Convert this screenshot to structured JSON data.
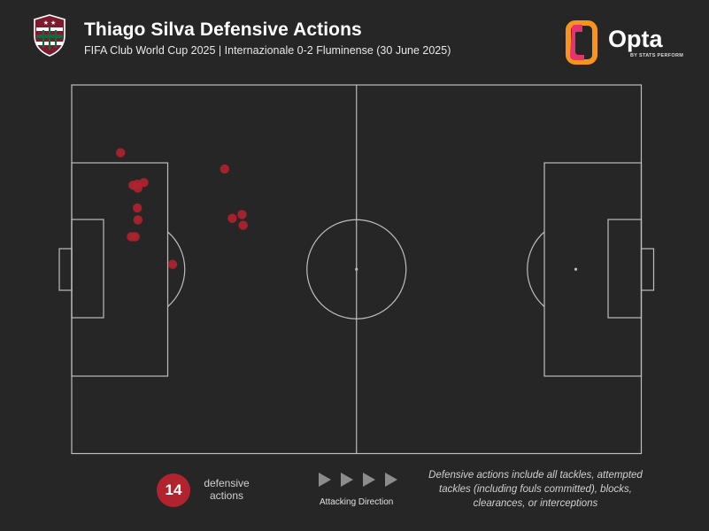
{
  "header": {
    "title": "Thiago Silva Defensive Actions",
    "subtitle": "FIFA Club World Cup 2025 | Internazionale 0-2 Fluminense (30 June 2025)"
  },
  "brand": {
    "crest_icon": "fluminense-crest-icon",
    "logo_icon": "opta-logo-icon",
    "logo_word": "Opta",
    "logo_sub": "BY STATS PERFORM",
    "logo_colors": [
      "#e6336f",
      "#f7941d"
    ]
  },
  "colors": {
    "background": "#262626",
    "pitch_lines": "#bdbdbd",
    "action_marker": "#b0232f"
  },
  "legend": {
    "count_value": "14",
    "count_label": "defensive actions",
    "direction_label": "Attacking Direction",
    "direction_icon": "play-arrow-icon",
    "note": "Defensive actions include all tackles, attempted tackles (including fouls committed), blocks, clearances, or interceptions"
  },
  "chart_data": {
    "type": "scatter",
    "pitch": {
      "length": 105,
      "width": 68,
      "direction": "left-to-right"
    },
    "x_unit": "metres from own goal line",
    "y_unit": "metres from top touchline",
    "points": [
      {
        "x": 9.0,
        "y": 12.5
      },
      {
        "x": 28.2,
        "y": 15.5
      },
      {
        "x": 13.3,
        "y": 18.0
      },
      {
        "x": 11.3,
        "y": 18.5
      },
      {
        "x": 12.1,
        "y": 18.3
      },
      {
        "x": 12.2,
        "y": 19.0
      },
      {
        "x": 12.1,
        "y": 22.7
      },
      {
        "x": 31.4,
        "y": 23.9
      },
      {
        "x": 29.6,
        "y": 24.6
      },
      {
        "x": 12.2,
        "y": 24.9
      },
      {
        "x": 31.6,
        "y": 25.9
      },
      {
        "x": 11.0,
        "y": 28.0
      },
      {
        "x": 11.7,
        "y": 28.0
      },
      {
        "x": 18.6,
        "y": 33.1
      }
    ]
  }
}
